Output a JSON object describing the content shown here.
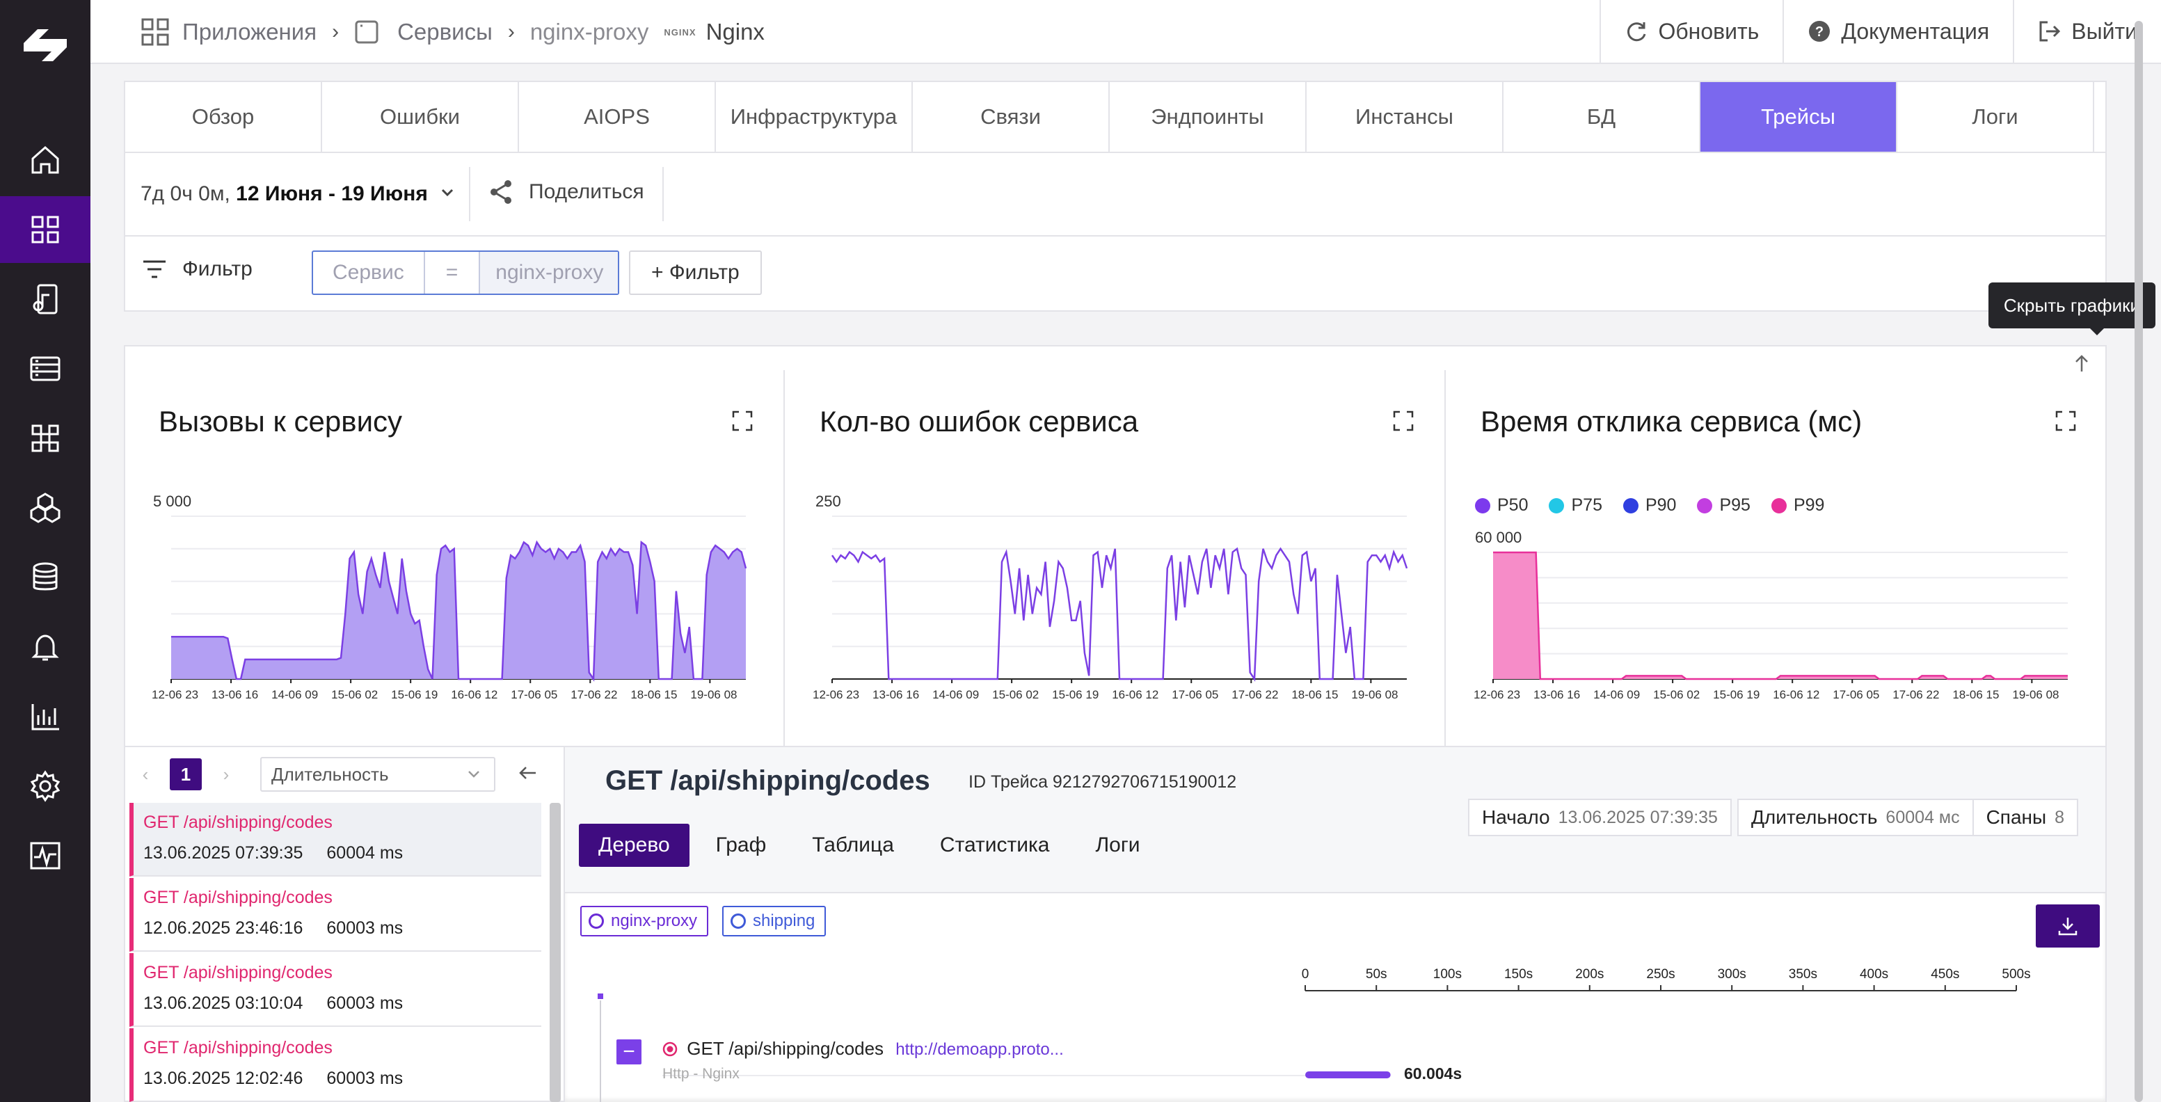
{
  "colors": {
    "sidebar_bg": "#231f26",
    "sidebar_active": "#4b0c8c",
    "accent": "#7b68ee",
    "dark_accent": "#3f0c80",
    "area_fill": "#b39ff3",
    "line": "#7b3fe4",
    "error_red": "#e0266e"
  },
  "sidebar": {
    "items": [
      {
        "icon": "home-icon"
      },
      {
        "icon": "apps-grid-icon",
        "active": true
      },
      {
        "icon": "device-music-icon"
      },
      {
        "icon": "server-list-icon"
      },
      {
        "icon": "command-icon"
      },
      {
        "icon": "hexagons-icon"
      },
      {
        "icon": "database-icon"
      },
      {
        "icon": "bell-icon"
      },
      {
        "icon": "bar-chart-icon"
      },
      {
        "icon": "settings-icon"
      },
      {
        "icon": "activity-icon"
      }
    ]
  },
  "breadcrumb": {
    "apps": "Приложения",
    "services": "Сервисы",
    "service": "nginx-proxy",
    "nginx_logo": "NGINX",
    "app_name": "Nginx"
  },
  "topbar": {
    "refresh": "Обновить",
    "docs": "Документация",
    "logout": "Выйти"
  },
  "tabs": [
    {
      "label": "Обзор"
    },
    {
      "label": "Ошибки"
    },
    {
      "label": "AIOPS"
    },
    {
      "label": "Инфраструктура"
    },
    {
      "label": "Связи"
    },
    {
      "label": "Эндпоинты"
    },
    {
      "label": "Инстансы"
    },
    {
      "label": "БД"
    },
    {
      "label": "Трейсы",
      "active": true
    },
    {
      "label": "Логи"
    }
  ],
  "date_range": {
    "duration": "7д 0ч 0м,",
    "range": "12 Июня - 19 Июня",
    "share": "Поделиться"
  },
  "filter": {
    "label": "Фильтр",
    "field_placeholder": "Сервис",
    "operator": "=",
    "value": "nginx-proxy",
    "add": "+ Фильтр"
  },
  "tooltip": "Скрыть графики",
  "chart_data": [
    {
      "type": "area",
      "title": "Вызовы к сервису",
      "ylabel": "",
      "y_tick": "5 000",
      "ylim": [
        0,
        5000
      ],
      "x_ticks": [
        "12-06 23",
        "13-06 16",
        "14-06 09",
        "15-06 02",
        "15-06 19",
        "16-06 12",
        "17-06 05",
        "17-06 22",
        "18-06 15",
        "19-06 08"
      ],
      "values": [
        1300,
        1300,
        1300,
        1300,
        1300,
        1300,
        1300,
        1300,
        1300,
        1300,
        1300,
        1300,
        1300,
        1250,
        600,
        0,
        0,
        600,
        600,
        600,
        600,
        600,
        600,
        600,
        600,
        600,
        600,
        600,
        600,
        600,
        600,
        600,
        600,
        600,
        600,
        600,
        600,
        600,
        600,
        650,
        2000,
        3700,
        3900,
        2600,
        2000,
        3300,
        3700,
        3200,
        2800,
        3900,
        3000,
        2500,
        2000,
        3700,
        2700,
        2000,
        1700,
        1800,
        1000,
        300,
        0,
        3200,
        4000,
        4100,
        3900,
        4000,
        0,
        0,
        0,
        0,
        0,
        0,
        0,
        0,
        0,
        0,
        0,
        3100,
        3800,
        3700,
        3900,
        4200,
        4100,
        3800,
        4200,
        4000,
        3900,
        4000,
        3700,
        4000,
        3900,
        3700,
        3900,
        3900,
        4100,
        3600,
        200,
        0,
        3600,
        3900,
        3700,
        4000,
        3800,
        4000,
        3900,
        3900,
        3500,
        2000,
        4200,
        4100,
        3600,
        3000,
        0,
        0,
        0,
        0,
        2700,
        1400,
        800,
        1600,
        0,
        0,
        0,
        3200,
        3900,
        4100,
        4000,
        3900,
        3700,
        3900,
        4000,
        3900,
        3400
      ],
      "xlabel": ""
    },
    {
      "type": "line",
      "title": "Кол-во ошибок сервиса",
      "y_tick": "250",
      "ylim": [
        0,
        250
      ],
      "x_ticks": [
        "12-06 23",
        "13-06 16",
        "14-06 09",
        "15-06 02",
        "15-06 19",
        "16-06 12",
        "17-06 05",
        "17-06 22",
        "18-06 15",
        "19-06 08"
      ],
      "values": [
        190,
        180,
        190,
        185,
        195,
        190,
        180,
        195,
        190,
        185,
        190,
        180,
        185,
        0,
        0,
        0,
        0,
        0,
        0,
        0,
        0,
        0,
        0,
        0,
        0,
        0,
        0,
        0,
        0,
        0,
        0,
        0,
        0,
        0,
        0,
        0,
        0,
        0,
        0,
        180,
        195,
        150,
        100,
        170,
        90,
        160,
        100,
        140,
        130,
        180,
        80,
        120,
        180,
        170,
        140,
        90,
        90,
        120,
        40,
        5,
        190,
        195,
        140,
        190,
        170,
        200,
        0,
        0,
        0,
        0,
        0,
        0,
        0,
        0,
        0,
        0,
        0,
        170,
        190,
        90,
        180,
        110,
        190,
        160,
        130,
        180,
        200,
        140,
        190,
        170,
        200,
        130,
        195,
        200,
        170,
        160,
        10,
        0,
        150,
        200,
        180,
        170,
        190,
        200,
        190,
        180,
        130,
        100,
        190,
        195,
        150,
        170,
        0,
        0,
        0,
        0,
        160,
        100,
        40,
        80,
        0,
        0,
        0,
        180,
        190,
        190,
        180,
        190,
        170,
        195,
        180,
        190,
        170
      ],
      "xlabel": ""
    },
    {
      "type": "area",
      "title": "Время отклика сервиса (мс)",
      "y_tick": "60 000",
      "ylim": [
        0,
        60000
      ],
      "x_ticks": [
        "12-06 23",
        "13-06 16",
        "14-06 09",
        "15-06 02",
        "15-06 19",
        "16-06 12",
        "17-06 05",
        "17-06 22",
        "18-06 15",
        "19-06 08"
      ],
      "legend": [
        "P50",
        "P75",
        "P90",
        "P95",
        "P99"
      ],
      "legend_colors": [
        "#7c3aed",
        "#22c7e6",
        "#2f3fe0",
        "#c23ee0",
        "#e8309a"
      ],
      "series_p99": [
        60000,
        60000,
        60000,
        60000,
        60000,
        60000,
        60000,
        60000,
        60000,
        60000,
        60000,
        0,
        0,
        0,
        0,
        0,
        0,
        0,
        0,
        0,
        0,
        0,
        0,
        0,
        0,
        0,
        0,
        0,
        0,
        0,
        0,
        1500,
        1500,
        1500,
        1500,
        1500,
        1500,
        1500,
        1500,
        1500,
        1500,
        1500,
        1500,
        1500,
        1500,
        0,
        0,
        0,
        0,
        0,
        0,
        0,
        0,
        0,
        0,
        0,
        0,
        0,
        0,
        0,
        0,
        0,
        0,
        0,
        0,
        0,
        0,
        1500,
        1500,
        1500,
        1500,
        1500,
        1500,
        1500,
        1500,
        1500,
        1500,
        1500,
        1500,
        1500,
        1500,
        1500,
        1500,
        1500,
        1500,
        1500,
        1500,
        1500,
        1500,
        1500,
        0,
        0,
        0,
        0,
        0,
        0,
        0,
        0,
        0,
        0,
        1500,
        1500,
        1500,
        1500,
        1500,
        1500,
        0,
        0,
        0,
        0,
        0,
        0,
        0,
        0,
        0,
        1500,
        1500,
        0,
        0,
        0,
        0,
        0,
        0,
        0,
        1500,
        1500,
        1500,
        1500,
        1500,
        1500,
        1500,
        1500,
        1500,
        1500,
        1500
      ],
      "xlabel": ""
    }
  ],
  "trace_list": {
    "page": "1",
    "sort": "Длительность",
    "items": [
      {
        "name": "GET /api/shipping/codes",
        "time": "13.06.2025 07:39:35",
        "duration": "60004 ms",
        "selected": true
      },
      {
        "name": "GET /api/shipping/codes",
        "time": "12.06.2025 23:46:16",
        "duration": "60003 ms"
      },
      {
        "name": "GET /api/shipping/codes",
        "time": "13.06.2025 03:10:04",
        "duration": "60003 ms"
      },
      {
        "name": "GET /api/shipping/codes",
        "time": "13.06.2025 12:02:46",
        "duration": "60003 ms"
      }
    ]
  },
  "trace_detail": {
    "title": "GET /api/shipping/codes",
    "trace_id": "ID Трейса 9212792706715190012",
    "start_label": "Начало",
    "start_value": "13.06.2025 07:39:35",
    "duration_label": "Длительность",
    "duration_value": "60004 мс",
    "spans_label": "Спаны",
    "spans_value": "8",
    "tabs": [
      "Дерево",
      "Граф",
      "Таблица",
      "Статистика",
      "Логи"
    ],
    "services": [
      {
        "name": "nginx-proxy",
        "color": "#6a2bd6"
      },
      {
        "name": "shipping",
        "color": "#3f5ad8"
      }
    ],
    "scale": [
      "0",
      "50s",
      "100s",
      "150s",
      "200s",
      "250s",
      "300s",
      "350s",
      "400s",
      "450s",
      "500s"
    ],
    "span": {
      "name": "GET /api/shipping/codes",
      "url": "http://demoapp.proto...",
      "sub": "Http - Nginx",
      "duration": "60.004s",
      "duration_seconds": 60.004
    }
  }
}
